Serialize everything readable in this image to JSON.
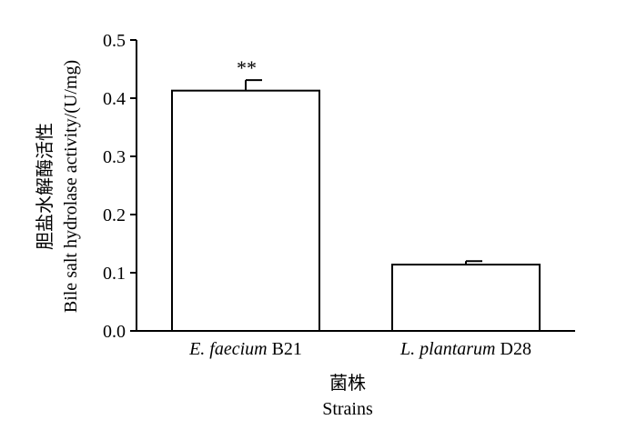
{
  "chart_data": {
    "type": "bar",
    "categories": [
      {
        "parts": [
          {
            "text": "E. faecium",
            "italic": true
          },
          {
            "text": " B21",
            "italic": false
          }
        ]
      },
      {
        "parts": [
          {
            "text": "L. plantarum",
            "italic": true
          },
          {
            "text": " D28",
            "italic": false
          }
        ]
      }
    ],
    "values": [
      0.413,
      0.114
    ],
    "error_plus": [
      0.018,
      0.006
    ],
    "annotations": [
      "**",
      ""
    ],
    "ylim": [
      0.0,
      0.5
    ],
    "yticks": [
      "0.0",
      "0.1",
      "0.2",
      "0.3",
      "0.4",
      "0.5"
    ],
    "ytick_values": [
      0.0,
      0.1,
      0.2,
      0.3,
      0.4,
      0.5
    ],
    "xlabel": {
      "cn": "菌株",
      "en": "Strains"
    },
    "ylabel": {
      "cn": "胆盐水解酶活性",
      "en": "Bile salt hydrolase activity/(U/mg)"
    },
    "grid": false,
    "legend": "none"
  },
  "colors": {
    "bar_fill": "#ffffff",
    "stroke": "#000000"
  }
}
